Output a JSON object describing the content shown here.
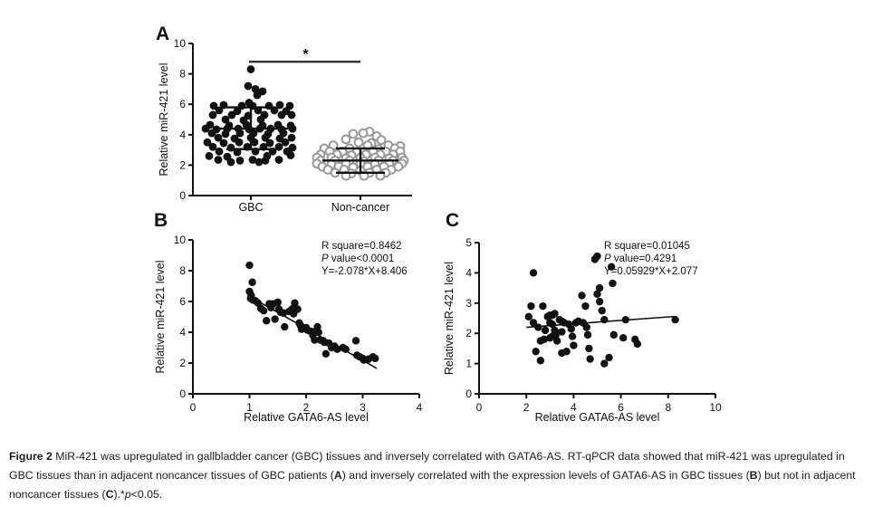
{
  "colors": {
    "ink": "#111111",
    "gray_marker": "#999999",
    "background": "#ffffff"
  },
  "caption": {
    "segments": [
      {
        "text": "Figure 2",
        "bold": true
      },
      {
        "text": " MiR-421 was upregulated in gallbladder cancer (GBC) tissues and inversely correlated with GATA6-AS. RT-qPCR data showed that miR-421 was upregulated in GBC tissues than in adjacent noncancer tissues of GBC patients (",
        "bold": false
      },
      {
        "text": "A",
        "bold": true
      },
      {
        "text": ") and inversely correlated with the expression levels of GATA6-AS in GBC tissues (",
        "bold": false
      },
      {
        "text": "B",
        "bold": true
      },
      {
        "text": ") but not in adjacent noncancer tissues (",
        "bold": false
      },
      {
        "text": "C",
        "bold": true
      },
      {
        "text": ").*",
        "bold": false
      },
      {
        "text": "p",
        "italic": true
      },
      {
        "text": "<0.05.",
        "bold": false
      }
    ]
  },
  "chart_data": [
    {
      "id": "A",
      "type": "dotplot",
      "panel_label": "A",
      "ylabel": "Relative miR-421 level",
      "ylim": [
        0,
        10
      ],
      "yticks": [
        0,
        2,
        4,
        6,
        8,
        10
      ],
      "significance": {
        "label": "*",
        "bar_y": 8.8
      },
      "groups": [
        {
          "label": "GBC",
          "marker": "filled",
          "mean": 4.4,
          "err_low": 3.05,
          "err_high": 5.8,
          "points": [
            [
              0,
              8.3
            ],
            [
              -3,
              7.2
            ],
            [
              5,
              7.0
            ],
            [
              13,
              6.85
            ],
            [
              7,
              6.6
            ],
            [
              -2,
              6.1
            ],
            [
              -41,
              5.9
            ],
            [
              -30,
              5.95
            ],
            [
              -10,
              5.9
            ],
            [
              2,
              5.9
            ],
            [
              20,
              5.9
            ],
            [
              32,
              5.95
            ],
            [
              43,
              5.9
            ],
            [
              -35,
              5.6
            ],
            [
              -15,
              5.55
            ],
            [
              8,
              5.6
            ],
            [
              26,
              5.6
            ],
            [
              39,
              5.55
            ],
            [
              -42,
              5.3
            ],
            [
              -21,
              5.3
            ],
            [
              -3,
              5.25
            ],
            [
              15,
              5.3
            ],
            [
              34,
              5.3
            ],
            [
              45,
              5.3
            ],
            [
              -28,
              5.0
            ],
            [
              -8,
              4.95
            ],
            [
              11,
              5.0
            ],
            [
              -45,
              4.65
            ],
            [
              -24,
              4.6
            ],
            [
              -5,
              4.65
            ],
            [
              13,
              4.6
            ],
            [
              30,
              4.65
            ],
            [
              44,
              4.6
            ],
            [
              -50,
              4.4
            ],
            [
              -38,
              4.35
            ],
            [
              -26,
              4.4
            ],
            [
              -14,
              4.4
            ],
            [
              -2,
              4.35
            ],
            [
              10,
              4.4
            ],
            [
              22,
              4.4
            ],
            [
              34,
              4.35
            ],
            [
              46,
              4.4
            ],
            [
              -43,
              4.1
            ],
            [
              -28,
              4.05
            ],
            [
              -12,
              4.1
            ],
            [
              3,
              4.1
            ],
            [
              19,
              4.05
            ],
            [
              36,
              4.1
            ],
            [
              -36,
              3.8
            ],
            [
              -18,
              3.75
            ],
            [
              0,
              3.8
            ],
            [
              16,
              3.8
            ],
            [
              32,
              3.75
            ],
            [
              45,
              3.8
            ],
            [
              -48,
              3.5
            ],
            [
              -30,
              3.45
            ],
            [
              -13,
              3.5
            ],
            [
              4,
              3.5
            ],
            [
              21,
              3.45
            ],
            [
              38,
              3.5
            ],
            [
              -42,
              3.2
            ],
            [
              -22,
              3.15
            ],
            [
              -4,
              3.2
            ],
            [
              14,
              3.2
            ],
            [
              31,
              3.2
            ],
            [
              46,
              3.15
            ],
            [
              -35,
              2.9
            ],
            [
              -15,
              2.85
            ],
            [
              5,
              2.9
            ],
            [
              24,
              2.9
            ],
            [
              40,
              2.9
            ],
            [
              -46,
              2.6
            ],
            [
              -26,
              2.55
            ],
            [
              18,
              2.6
            ],
            [
              44,
              2.65
            ],
            [
              -36,
              2.35
            ],
            [
              -12,
              2.3
            ],
            [
              2,
              2.35
            ],
            [
              16,
              2.3
            ],
            [
              31,
              2.35
            ],
            [
              -22,
              2.2
            ],
            [
              9,
              2.2
            ]
          ]
        },
        {
          "label": "Non-cancer",
          "marker": "open",
          "mean": 2.3,
          "err_low": 1.5,
          "err_high": 3.1,
          "points": [
            [
              10,
              4.2
            ],
            [
              -8,
              4.05
            ],
            [
              3,
              4.1
            ],
            [
              18,
              3.9
            ],
            [
              -16,
              3.7
            ],
            [
              23,
              3.65
            ],
            [
              -2,
              3.5
            ],
            [
              12,
              3.45
            ],
            [
              -30,
              3.3
            ],
            [
              8,
              3.3
            ],
            [
              31,
              3.3
            ],
            [
              44,
              3.25
            ],
            [
              -40,
              3.1
            ],
            [
              -12,
              3.1
            ],
            [
              20,
              3.05
            ],
            [
              38,
              3.1
            ],
            [
              -34,
              2.9
            ],
            [
              -20,
              2.9
            ],
            [
              -4,
              2.85
            ],
            [
              14,
              2.9
            ],
            [
              28,
              2.9
            ],
            [
              44,
              2.9
            ],
            [
              -44,
              2.7
            ],
            [
              -26,
              2.7
            ],
            [
              -10,
              2.65
            ],
            [
              6,
              2.7
            ],
            [
              22,
              2.7
            ],
            [
              36,
              2.7
            ],
            [
              -48,
              2.5
            ],
            [
              -32,
              2.5
            ],
            [
              -16,
              2.45
            ],
            [
              0,
              2.5
            ],
            [
              16,
              2.5
            ],
            [
              32,
              2.45
            ],
            [
              46,
              2.5
            ],
            [
              -44,
              2.3
            ],
            [
              -28,
              2.3
            ],
            [
              -12,
              2.3
            ],
            [
              4,
              2.25
            ],
            [
              20,
              2.3
            ],
            [
              36,
              2.3
            ],
            [
              48,
              2.3
            ],
            [
              -48,
              2.1
            ],
            [
              -32,
              2.05
            ],
            [
              -16,
              2.1
            ],
            [
              0,
              2.1
            ],
            [
              16,
              2.05
            ],
            [
              32,
              2.1
            ],
            [
              46,
              2.1
            ],
            [
              -42,
              1.9
            ],
            [
              -24,
              1.9
            ],
            [
              -8,
              1.85
            ],
            [
              8,
              1.9
            ],
            [
              26,
              1.9
            ],
            [
              42,
              1.9
            ],
            [
              -36,
              1.7
            ],
            [
              -18,
              1.7
            ],
            [
              0,
              1.65
            ],
            [
              18,
              1.7
            ],
            [
              34,
              1.7
            ],
            [
              -28,
              1.5
            ],
            [
              -10,
              1.45
            ],
            [
              10,
              1.5
            ],
            [
              28,
              1.5
            ],
            [
              -16,
              1.3
            ],
            [
              4,
              1.3
            ],
            [
              22,
              1.3
            ]
          ]
        }
      ]
    },
    {
      "id": "B",
      "type": "scatter",
      "panel_label": "B",
      "xlabel": "Relative GATA6-AS level",
      "ylabel": "Relative miR-421 level",
      "xlim": [
        0,
        4
      ],
      "xticks": [
        0,
        1,
        2,
        3,
        4
      ],
      "ylim": [
        0,
        10
      ],
      "yticks": [
        0,
        2,
        4,
        6,
        8,
        10
      ],
      "annotation": [
        {
          "italic_prefix": "",
          "text": "R square=0.8462"
        },
        {
          "italic_prefix": "P",
          "text": " value<0.0001"
        },
        {
          "italic_prefix": "",
          "text": "Y=-2.078*X+8.406"
        }
      ],
      "regression": {
        "x1": 1.0,
        "y1": 6.33,
        "x2": 3.25,
        "y2": 1.65
      },
      "points": [
        [
          1.0,
          8.35
        ],
        [
          1.05,
          7.25
        ],
        [
          1.0,
          6.65
        ],
        [
          1.03,
          6.4
        ],
        [
          1.02,
          6.2
        ],
        [
          1.06,
          6.1
        ],
        [
          1.1,
          6.05
        ],
        [
          1.15,
          5.9
        ],
        [
          1.2,
          5.55
        ],
        [
          1.25,
          5.4
        ],
        [
          1.3,
          4.75
        ],
        [
          1.35,
          5.85
        ],
        [
          1.38,
          5.6
        ],
        [
          1.42,
          5.85
        ],
        [
          1.45,
          4.85
        ],
        [
          1.5,
          5.95
        ],
        [
          1.52,
          5.5
        ],
        [
          1.55,
          5.3
        ],
        [
          1.6,
          5.25
        ],
        [
          1.62,
          4.35
        ],
        [
          1.7,
          5.35
        ],
        [
          1.75,
          5.5
        ],
        [
          1.78,
          5.2
        ],
        [
          1.8,
          5.9
        ],
        [
          1.85,
          5.5
        ],
        [
          1.88,
          4.6
        ],
        [
          1.9,
          4.45
        ],
        [
          1.92,
          4.2
        ],
        [
          1.95,
          4.3
        ],
        [
          2.0,
          4.3
        ],
        [
          2.02,
          4.15
        ],
        [
          2.05,
          4.1
        ],
        [
          2.1,
          4.05
        ],
        [
          2.12,
          3.8
        ],
        [
          2.15,
          3.5
        ],
        [
          2.2,
          4.35
        ],
        [
          2.22,
          4.0
        ],
        [
          2.25,
          3.5
        ],
        [
          2.3,
          3.45
        ],
        [
          2.32,
          3.35
        ],
        [
          2.35,
          2.6
        ],
        [
          2.4,
          3.3
        ],
        [
          2.45,
          3.0
        ],
        [
          2.5,
          3.1
        ],
        [
          2.55,
          2.9
        ],
        [
          2.65,
          3.0
        ],
        [
          2.7,
          2.9
        ],
        [
          2.88,
          3.45
        ],
        [
          2.9,
          2.5
        ],
        [
          2.95,
          2.4
        ],
        [
          3.0,
          2.3
        ],
        [
          3.02,
          2.2
        ],
        [
          3.1,
          2.25
        ],
        [
          3.18,
          2.4
        ],
        [
          3.22,
          2.3
        ]
      ]
    },
    {
      "id": "C",
      "type": "scatter",
      "panel_label": "C",
      "xlabel": "Relative GATA6-AS level",
      "ylabel": "Relative miR-421 level",
      "xlim": [
        0,
        10
      ],
      "xticks": [
        0,
        2,
        4,
        6,
        8,
        10
      ],
      "ylim": [
        0,
        5
      ],
      "yticks": [
        0,
        1,
        2,
        3,
        4,
        5
      ],
      "annotation": [
        {
          "italic_prefix": "",
          "text": "R square=0.01045"
        },
        {
          "italic_prefix": "P",
          "text": " value=0.4291"
        },
        {
          "italic_prefix": "",
          "text": "Y=0.05929*X+2.077"
        }
      ],
      "regression": {
        "x1": 2.0,
        "y1": 2.2,
        "x2": 8.3,
        "y2": 2.56
      },
      "points": [
        [
          2.1,
          2.55
        ],
        [
          2.2,
          2.9
        ],
        [
          2.3,
          4.0
        ],
        [
          2.3,
          2.35
        ],
        [
          2.4,
          1.4
        ],
        [
          2.5,
          2.2
        ],
        [
          2.6,
          1.1
        ],
        [
          2.6,
          1.75
        ],
        [
          2.7,
          2.9
        ],
        [
          2.75,
          1.8
        ],
        [
          2.8,
          2.1
        ],
        [
          2.9,
          2.55
        ],
        [
          3.0,
          2.6
        ],
        [
          3.0,
          2.35
        ],
        [
          3.0,
          1.85
        ],
        [
          3.1,
          2.6
        ],
        [
          3.1,
          2.3
        ],
        [
          3.1,
          1.9
        ],
        [
          3.2,
          2.65
        ],
        [
          3.2,
          2.1
        ],
        [
          3.25,
          1.95
        ],
        [
          3.3,
          1.75
        ],
        [
          3.4,
          2.45
        ],
        [
          3.5,
          2.4
        ],
        [
          3.5,
          2.05
        ],
        [
          3.5,
          1.35
        ],
        [
          3.6,
          2.35
        ],
        [
          3.7,
          1.4
        ],
        [
          3.8,
          2.3
        ],
        [
          3.9,
          2.15
        ],
        [
          3.95,
          1.9
        ],
        [
          4.0,
          1.6
        ],
        [
          4.1,
          2.35
        ],
        [
          4.2,
          2.4
        ],
        [
          4.35,
          3.25
        ],
        [
          4.4,
          2.35
        ],
        [
          4.5,
          2.9
        ],
        [
          4.55,
          2.2
        ],
        [
          4.6,
          1.95
        ],
        [
          4.65,
          1.5
        ],
        [
          4.7,
          1.15
        ],
        [
          4.9,
          4.45
        ],
        [
          5.0,
          4.55
        ],
        [
          5.0,
          3.3
        ],
        [
          5.1,
          3.5
        ],
        [
          5.1,
          3.05
        ],
        [
          5.2,
          2.75
        ],
        [
          5.3,
          2.45
        ],
        [
          5.3,
          1.0
        ],
        [
          5.5,
          1.2
        ],
        [
          5.6,
          4.2
        ],
        [
          5.65,
          3.65
        ],
        [
          5.7,
          1.95
        ],
        [
          6.1,
          1.85
        ],
        [
          6.2,
          2.45
        ],
        [
          6.6,
          1.8
        ],
        [
          6.7,
          1.65
        ],
        [
          8.3,
          2.45
        ]
      ]
    }
  ]
}
